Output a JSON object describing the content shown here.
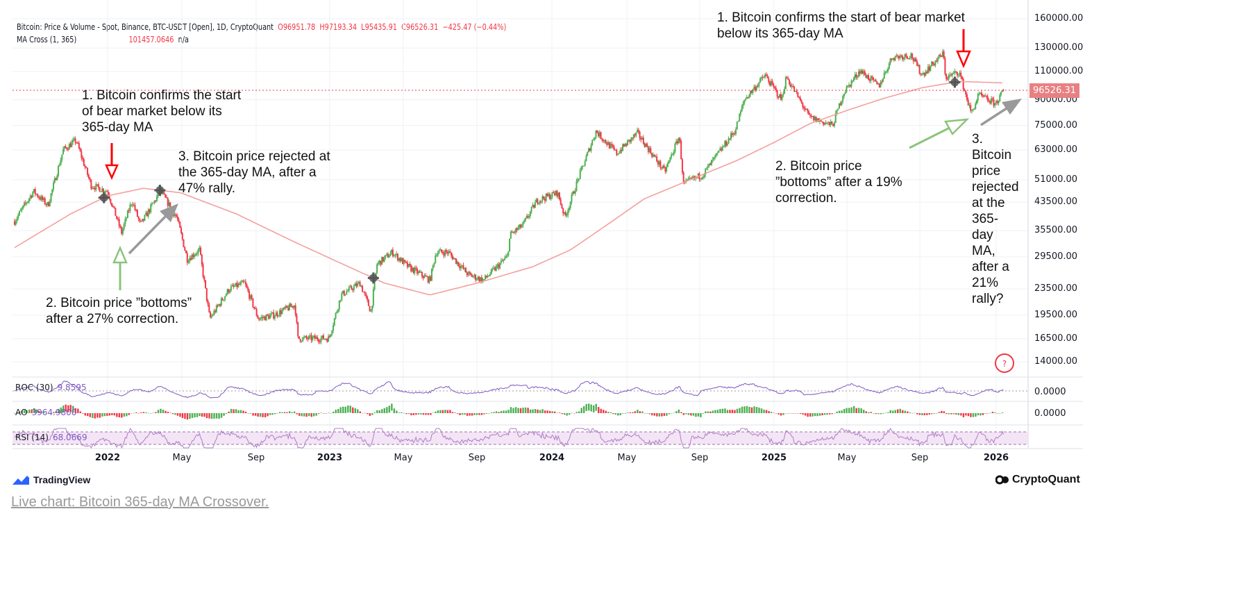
{
  "header": {
    "symbol_line": "Bitcoin: Price & Volume - Spot, Binance, BTC-USDT [Open], 1D, CryptoQuant",
    "open": "O96951.78",
    "high": "H97193.34",
    "low": "L95435.91",
    "close": "C96526.31",
    "change": "−425.47 (−0.44%)",
    "ma_label": "MA Cross (1, 365)",
    "ma_value": "101457.0646",
    "ma_extra": "n/a"
  },
  "indicators": {
    "roc": {
      "label": "ROC (30)",
      "value": "9.8595",
      "axis": "0.0000"
    },
    "ao": {
      "label": "AO",
      "value": "3964.9800",
      "axis": "0.0000"
    },
    "rsi": {
      "label": "RSI (14)",
      "value": "68.0669"
    }
  },
  "annotations": {
    "left_1": "1. Bitcoin confirms the start of bear market below its 365-day MA",
    "left_2": "2. Bitcoin price ”bottoms” after a 27% correction.",
    "left_3": "3. Bitcoin price rejected at the 365-day MA, after a 47% rally.",
    "right_1": "1. Bitcoin confirms the start of bear market below its 365-day MA",
    "right_2": "2. Bitcoin price ”bottoms” after a 19% correction.",
    "right_3": "3. Bitcoin price rejected at the 365-day MA, after a 21% rally?"
  },
  "price_label": "96526.31",
  "help_icon": "?",
  "branding": {
    "left": "TradingView",
    "right": "CryptoQuant"
  },
  "footer_link": "Live chart: Bitcoin 365-day MA Crossover.",
  "colors": {
    "up": "#4caf50",
    "down": "#f23645",
    "ma": "#f4a09c",
    "roc": "#7e57c2",
    "rsi": "#9c27b0",
    "annot_red": "#ff0000",
    "annot_green": "#8bc47a",
    "annot_gray": "#999999"
  },
  "chart_data": {
    "type": "line",
    "yscale": "log",
    "ylim": [
      13000,
      165000
    ],
    "y_ticks": [
      "160000.00",
      "130000.00",
      "110000.00",
      "90000.00",
      "75000.00",
      "63000.00",
      "51000.00",
      "43500.00",
      "35500.00",
      "29500.00",
      "23500.00",
      "19500.00",
      "16500.00",
      "14000.00"
    ],
    "x_ticks": [
      "2022",
      "May",
      "Sep",
      "2023",
      "May",
      "Sep",
      "2024",
      "May",
      "Sep",
      "2025",
      "May",
      "Sep",
      "2026"
    ],
    "grid": true,
    "series": [
      {
        "name": "Bitcoin: Price & Volume",
        "points": [
          [
            "2021-08-01",
            38000
          ],
          [
            "2021-09-01",
            47000
          ],
          [
            "2021-09-25",
            42500
          ],
          [
            "2021-10-20",
            63000
          ],
          [
            "2021-11-10",
            67500
          ],
          [
            "2021-12-05",
            49000
          ],
          [
            "2022-01-01",
            47000
          ],
          [
            "2022-01-24",
            35000
          ],
          [
            "2022-02-10",
            44000
          ],
          [
            "2022-02-24",
            37000
          ],
          [
            "2022-03-29",
            47000
          ],
          [
            "2022-04-25",
            39000
          ],
          [
            "2022-05-12",
            29000
          ],
          [
            "2022-06-01",
            31000
          ],
          [
            "2022-06-18",
            19000
          ],
          [
            "2022-07-20",
            23500
          ],
          [
            "2022-08-14",
            24500
          ],
          [
            "2022-09-06",
            19000
          ],
          [
            "2022-10-01",
            19500
          ],
          [
            "2022-11-05",
            21000
          ],
          [
            "2022-11-10",
            16500
          ],
          [
            "2022-12-31",
            16550
          ],
          [
            "2023-01-20",
            22500
          ],
          [
            "2023-02-20",
            24500
          ],
          [
            "2023-03-10",
            20000
          ],
          [
            "2023-03-20",
            28000
          ],
          [
            "2023-04-14",
            30500
          ],
          [
            "2023-05-10",
            27500
          ],
          [
            "2023-06-15",
            25000
          ],
          [
            "2023-06-25",
            30500
          ],
          [
            "2023-07-15",
            30500
          ],
          [
            "2023-08-17",
            26000
          ],
          [
            "2023-09-11",
            25000
          ],
          [
            "2023-10-20",
            29500
          ],
          [
            "2023-10-25",
            34500
          ],
          [
            "2023-11-15",
            37000
          ],
          [
            "2023-12-08",
            44000
          ],
          [
            "2024-01-11",
            46500
          ],
          [
            "2024-01-23",
            39000
          ],
          [
            "2024-02-14",
            51500
          ],
          [
            "2024-03-14",
            72000
          ],
          [
            "2024-04-17",
            61500
          ],
          [
            "2024-05-21",
            71000
          ],
          [
            "2024-07-05",
            54000
          ],
          [
            "2024-07-29",
            69500
          ],
          [
            "2024-08-05",
            49500
          ],
          [
            "2024-09-06",
            53000
          ],
          [
            "2024-10-29",
            72500
          ],
          [
            "2024-11-13",
            90000
          ],
          [
            "2024-12-17",
            107000
          ],
          [
            "2025-01-13",
            90000
          ],
          [
            "2025-01-21",
            106000
          ],
          [
            "2025-02-28",
            79500
          ],
          [
            "2025-04-07",
            75000
          ],
          [
            "2025-04-25",
            94500
          ],
          [
            "2025-05-22",
            111000
          ],
          [
            "2025-06-22",
            99000
          ],
          [
            "2025-07-14",
            122000
          ],
          [
            "2025-08-14",
            123500
          ],
          [
            "2025-09-01",
            107500
          ],
          [
            "2025-10-06",
            125000
          ],
          [
            "2025-10-10",
            105000
          ],
          [
            "2025-11-01",
            110000
          ],
          [
            "2025-11-21",
            81500
          ],
          [
            "2025-12-03",
            93000
          ],
          [
            "2025-12-31",
            87500
          ],
          [
            "2026-01-14",
            96526.31
          ]
        ]
      },
      {
        "name": "MA Cross (1, 365)",
        "points": [
          [
            "2021-08-01",
            31500
          ],
          [
            "2021-11-01",
            40000
          ],
          [
            "2022-01-01",
            45500
          ],
          [
            "2022-03-01",
            48000
          ],
          [
            "2022-05-01",
            46500
          ],
          [
            "2022-08-01",
            40000
          ],
          [
            "2022-11-01",
            33000
          ],
          [
            "2023-02-01",
            27500
          ],
          [
            "2023-04-01",
            24500
          ],
          [
            "2023-06-15",
            22500
          ],
          [
            "2023-09-01",
            24500
          ],
          [
            "2023-12-01",
            27500
          ],
          [
            "2024-02-01",
            31000
          ],
          [
            "2024-04-01",
            37000
          ],
          [
            "2024-06-01",
            44500
          ],
          [
            "2024-09-01",
            52500
          ],
          [
            "2024-11-01",
            58500
          ],
          [
            "2025-01-01",
            66500
          ],
          [
            "2025-03-01",
            76000
          ],
          [
            "2025-05-01",
            83500
          ],
          [
            "2025-07-01",
            91000
          ],
          [
            "2025-09-01",
            98000
          ],
          [
            "2025-11-01",
            102500
          ],
          [
            "2026-01-14",
            101457.0646
          ]
        ]
      }
    ]
  }
}
